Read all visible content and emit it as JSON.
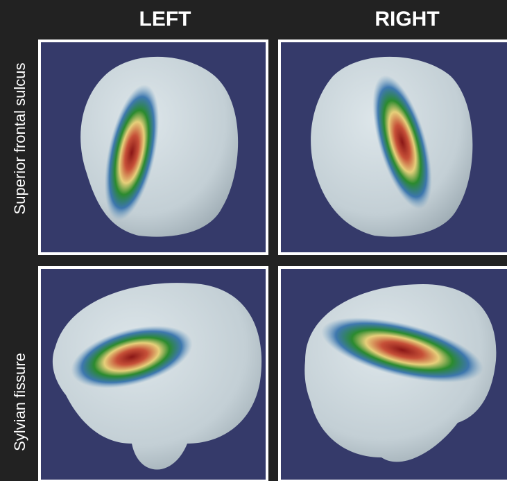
{
  "columns": [
    "LEFT",
    "RIGHT"
  ],
  "rows": [
    "Superior frontal sulcus",
    "Sylvian fissure"
  ]
}
